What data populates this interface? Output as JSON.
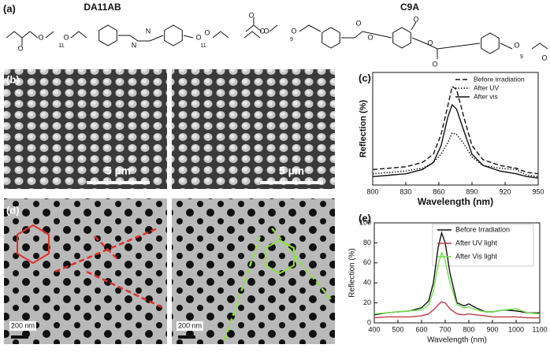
{
  "panel_labels": [
    "(a)",
    "(b)",
    "(c)",
    "(d)",
    "(e)"
  ],
  "molecules": [
    {
      "name": "DA11AB",
      "atoms": [
        "O",
        "O",
        "11",
        "O",
        "N",
        "N",
        "O",
        "11",
        "O",
        "O"
      ]
    },
    {
      "name": "C9A",
      "atoms": [
        "O",
        "O",
        "9",
        "O",
        "O",
        "O",
        "O",
        "O",
        "O",
        "9",
        "O",
        "O"
      ]
    }
  ],
  "scale_bars": [
    "5 µm",
    "5 µm",
    "200 nm",
    "200 nm"
  ],
  "chart_data": [
    {
      "type": "line",
      "x_label": "Wavelength (nm)",
      "y_label": "Reflection (%)",
      "xlim": [
        800,
        950
      ],
      "xticks": [
        800,
        830,
        860,
        890,
        920,
        950
      ],
      "ylim": [
        0,
        40
      ],
      "x": [
        800,
        815,
        830,
        845,
        855,
        862,
        868,
        872,
        876,
        882,
        890,
        900,
        915,
        930,
        940,
        950
      ],
      "series": [
        {
          "name": "Before irradiation",
          "color": "#111111",
          "dash": "dashed",
          "values": [
            5.5,
            6,
            6.5,
            8,
            11,
            18,
            28,
            35,
            34,
            25,
            14,
            9,
            7,
            6,
            4.5,
            4
          ]
        },
        {
          "name": "After UV",
          "color": "#111111",
          "dash": "dotted",
          "values": [
            4,
            4.5,
            5,
            6,
            8,
            11,
            15,
            18.5,
            18,
            15,
            10,
            7,
            6,
            5.5,
            3.5,
            3
          ]
        },
        {
          "name": "After vis",
          "color": "#111111",
          "dash": "solid",
          "values": [
            3,
            3.5,
            4,
            5.5,
            8,
            14,
            24,
            28.5,
            27,
            20,
            11,
            7,
            5,
            4,
            3,
            2.5
          ]
        }
      ],
      "legend": "top-right"
    },
    {
      "type": "line",
      "x_label": "Wavelength (nm)",
      "y_label": "Reflection (%)",
      "xlim": [
        400,
        1100
      ],
      "xticks": [
        400,
        500,
        600,
        700,
        800,
        900,
        1000,
        1100
      ],
      "ylim": [
        0,
        100
      ],
      "yticks": [
        0,
        20,
        40,
        60,
        80,
        100
      ],
      "x": [
        400,
        450,
        500,
        550,
        600,
        630,
        650,
        670,
        685,
        700,
        720,
        750,
        780,
        800,
        830,
        870,
        900,
        950,
        1000,
        1050,
        1100
      ],
      "series": [
        {
          "name": "Before Irradiation",
          "color": "#111111",
          "dash": "solid",
          "values": [
            8,
            10,
            11,
            12,
            15,
            22,
            40,
            75,
            90,
            80,
            50,
            20,
            17,
            19,
            15,
            11,
            11,
            13,
            12,
            10,
            10
          ]
        },
        {
          "name": "After UV light",
          "color": "#c0394a",
          "dash": "solid",
          "values": [
            5,
            6,
            6,
            6,
            7,
            9,
            13,
            18,
            21,
            20,
            14,
            9,
            8,
            9,
            8,
            7,
            6,
            6,
            6,
            5,
            5
          ]
        },
        {
          "name": "After Vis light",
          "color": "#6fe04a",
          "dash": "solid",
          "values": [
            9,
            10,
            11,
            12,
            13,
            18,
            32,
            58,
            70,
            62,
            40,
            18,
            15,
            16,
            13,
            11,
            11,
            13,
            14,
            10,
            9
          ]
        }
      ],
      "legend": "top-right"
    }
  ]
}
